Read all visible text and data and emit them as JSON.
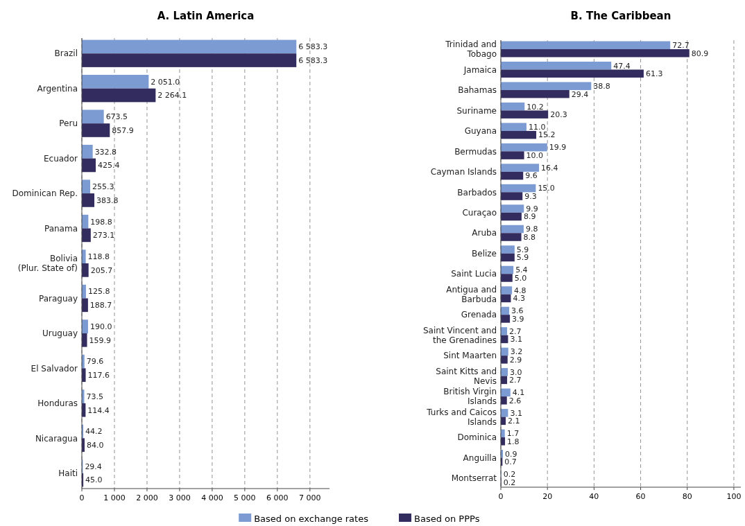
{
  "chart_data": [
    {
      "type": "bar",
      "title": "A. Latin America",
      "orientation": "horizontal",
      "grid": "x",
      "legend": "bottom",
      "categories": [
        "Brazil",
        "Argentina",
        "Peru",
        "Ecuador",
        "Dominican Rep.",
        "Panama",
        "Bolivia (Plur. State of)",
        "Paraguay",
        "Uruguay",
        "El Salvador",
        "Honduras",
        "Nicaragua",
        "Haiti"
      ],
      "xlim": [
        0,
        7600
      ],
      "xticks": [
        0,
        {
          "value": 1000,
          "label": "1 000"
        },
        {
          "value": 2000,
          "label": "2 000"
        },
        {
          "value": 3000,
          "label": "3 000"
        },
        {
          "value": 4000,
          "label": "4 000"
        },
        {
          "value": 5000,
          "label": "5 000"
        },
        {
          "value": 6000,
          "label": "6 000"
        },
        {
          "value": 7000,
          "label": "7 000"
        }
      ],
      "series": [
        {
          "name": "Based on exchange rates",
          "color": "#7b9bd2",
          "values": [
            6583.3,
            2051.0,
            673.5,
            332.8,
            255.3,
            198.8,
            118.8,
            125.8,
            190.0,
            79.6,
            73.5,
            44.2,
            29.4
          ],
          "value_labels": [
            "6 583.3",
            "2 051.0",
            "673.5",
            "332.8",
            "255.3",
            "198.8",
            "118.8",
            "125.8",
            "190.0",
            "79.6",
            "73.5",
            "44.2",
            "29.4"
          ]
        },
        {
          "name": "Based on PPPs",
          "color": "#332c5e",
          "values": [
            6583.3,
            2264.1,
            857.9,
            425.4,
            383.8,
            273.1,
            205.7,
            188.7,
            159.9,
            117.6,
            114.4,
            84.0,
            45.0
          ],
          "value_labels": [
            "6 583.3",
            "2 264.1",
            "857.9",
            "425.4",
            "383.8",
            "273.1",
            "205.7",
            "188.7",
            "159.9",
            "117.6",
            "114.4",
            "84.0",
            "45.0"
          ]
        }
      ]
    },
    {
      "type": "bar",
      "title": "B. The Caribbean",
      "orientation": "horizontal",
      "grid": "x",
      "categories": [
        "Trinidad and Tobago",
        "Jamaica",
        "Bahamas",
        "Suriname",
        "Guyana",
        "Bermudas",
        "Cayman Islands",
        "Barbados",
        "Curaçao",
        "Aruba",
        "Belize",
        "Saint Lucia",
        "Antigua and Barbuda",
        "Grenada",
        "Saint Vincent and the Grenadines",
        "Sint Maarten",
        "Saint Kitts and Nevis",
        "British Virgin Islands",
        "Turks and Caicos Islands",
        "Dominica",
        "Anguilla",
        "Montserrat"
      ],
      "xlim": [
        0,
        103
      ],
      "xticks": [
        0,
        20,
        40,
        60,
        80,
        100
      ],
      "series": [
        {
          "color": "#7b9bd2",
          "values": [
            72.7,
            47.4,
            38.8,
            10.2,
            11.0,
            19.9,
            16.4,
            15.0,
            9.9,
            9.8,
            5.9,
            5.4,
            4.8,
            3.6,
            2.7,
            3.2,
            3.0,
            4.1,
            3.1,
            1.7,
            0.9,
            0.2
          ],
          "value_labels": [
            "72.7",
            "47.4",
            "38.8",
            "10.2",
            "11.0",
            "19.9",
            "16.4",
            "15.0",
            "9.9",
            "9.8",
            "5.9",
            "5.4",
            "4.8",
            "3.6",
            "2.7",
            "3.2",
            "3.0",
            "4.1",
            "3.1",
            "1.7",
            "0.9",
            "0.2"
          ]
        },
        {
          "color": "#332c5e",
          "values": [
            80.9,
            61.3,
            29.4,
            20.3,
            15.2,
            10.0,
            9.6,
            9.3,
            8.9,
            8.8,
            5.9,
            5.0,
            4.3,
            3.9,
            3.1,
            2.9,
            2.7,
            2.6,
            2.1,
            1.8,
            0.7,
            0.2
          ],
          "value_labels": [
            "80.9",
            "61.3",
            "29.4",
            "20.3",
            "15.2",
            "10.0",
            "9.6",
            "9.3",
            "8.9",
            "8.8",
            "5.9",
            "5.0",
            "4.3",
            "3.9",
            "3.1",
            "2.9",
            "2.7",
            "2.6",
            "2.1",
            "1.8",
            "0.7",
            "0.2"
          ]
        }
      ]
    }
  ]
}
